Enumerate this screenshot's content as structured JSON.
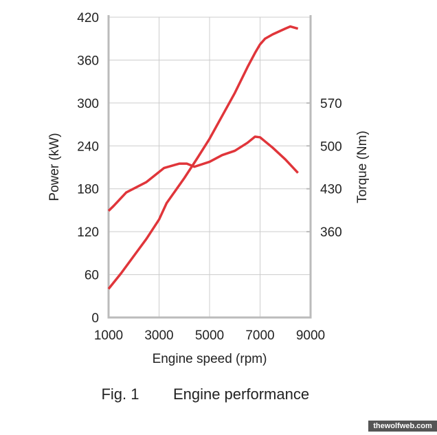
{
  "chart_data": {
    "type": "line",
    "xlabel": "Engine speed (rpm)",
    "ylabel": "Power (kW)",
    "y2label": "Torque (Nm)",
    "xlim": [
      1000,
      9000
    ],
    "xticks": [
      1000,
      3000,
      5000,
      7000,
      9000
    ],
    "ylim": [
      0,
      420
    ],
    "yticks": [
      0,
      60,
      120,
      180,
      240,
      300,
      360,
      420
    ],
    "y2lim": [
      220,
      710
    ],
    "y2ticks": [
      360,
      430,
      500,
      570
    ],
    "grid": true,
    "series": [
      {
        "name": "Power",
        "color": "#e0353a",
        "x": [
          1000,
          1500,
          2000,
          2500,
          3000,
          3300,
          4000,
          4500,
          5000,
          5500,
          6000,
          6500,
          6800,
          7000,
          7200,
          7500,
          8000,
          8200,
          8500
        ],
        "values": [
          40,
          62,
          86,
          110,
          137,
          160,
          195,
          222,
          250,
          282,
          314,
          350,
          370,
          382,
          390,
          396,
          404,
          407,
          404
        ]
      },
      {
        "name": "Torque",
        "color": "#e0353a",
        "axis": "y2",
        "x": [
          1000,
          1200,
          1700,
          2500,
          3200,
          3800,
          4100,
          4400,
          5000,
          5500,
          6000,
          6500,
          6800,
          7000,
          7500,
          8000,
          8500
        ],
        "values": [
          394,
          402,
          424,
          441,
          464,
          471,
          471,
          466,
          474,
          485,
          492,
          505,
          515,
          514,
          497,
          478,
          456
        ]
      }
    ]
  },
  "caption_label": "Fig. 1",
  "caption": "Engine performance",
  "watermark": "thewolfweb.com"
}
